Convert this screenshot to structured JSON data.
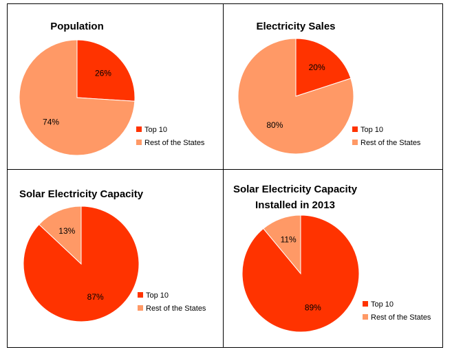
{
  "colors": {
    "top10": "#FF3300",
    "rest": "#FF9966",
    "border": "#000000"
  },
  "chart_data": [
    {
      "type": "pie",
      "title": [
        "Population"
      ],
      "categories": [
        "Top 10",
        "Rest of the States"
      ],
      "values": [
        26,
        74
      ],
      "labels": [
        "26%",
        "74%"
      ],
      "legend": [
        "Top 10",
        "Rest of the States"
      ],
      "legend_position": "bottom-right"
    },
    {
      "type": "pie",
      "title": [
        "Electricity Sales"
      ],
      "categories": [
        "Top 10",
        "Rest of the States"
      ],
      "values": [
        20,
        80
      ],
      "labels": [
        "20%",
        "80%"
      ],
      "legend": [
        "Top 10",
        "Rest of the States"
      ],
      "legend_position": "bottom-right"
    },
    {
      "type": "pie",
      "title": [
        "Solar Electricity Capacity"
      ],
      "categories": [
        "Top 10",
        "Rest of the States"
      ],
      "values": [
        87,
        13
      ],
      "labels": [
        "87%",
        "13%"
      ],
      "legend": [
        "Top 10",
        "Rest of the States"
      ],
      "legend_position": "bottom-right"
    },
    {
      "type": "pie",
      "title": [
        "Solar Electricity Capacity",
        "Installed in 2013"
      ],
      "categories": [
        "Top 10",
        "Rest of the States"
      ],
      "values": [
        89,
        11
      ],
      "labels": [
        "89%",
        "11%"
      ],
      "legend": [
        "Top 10",
        "Rest of the States"
      ],
      "legend_position": "bottom-right"
    }
  ]
}
